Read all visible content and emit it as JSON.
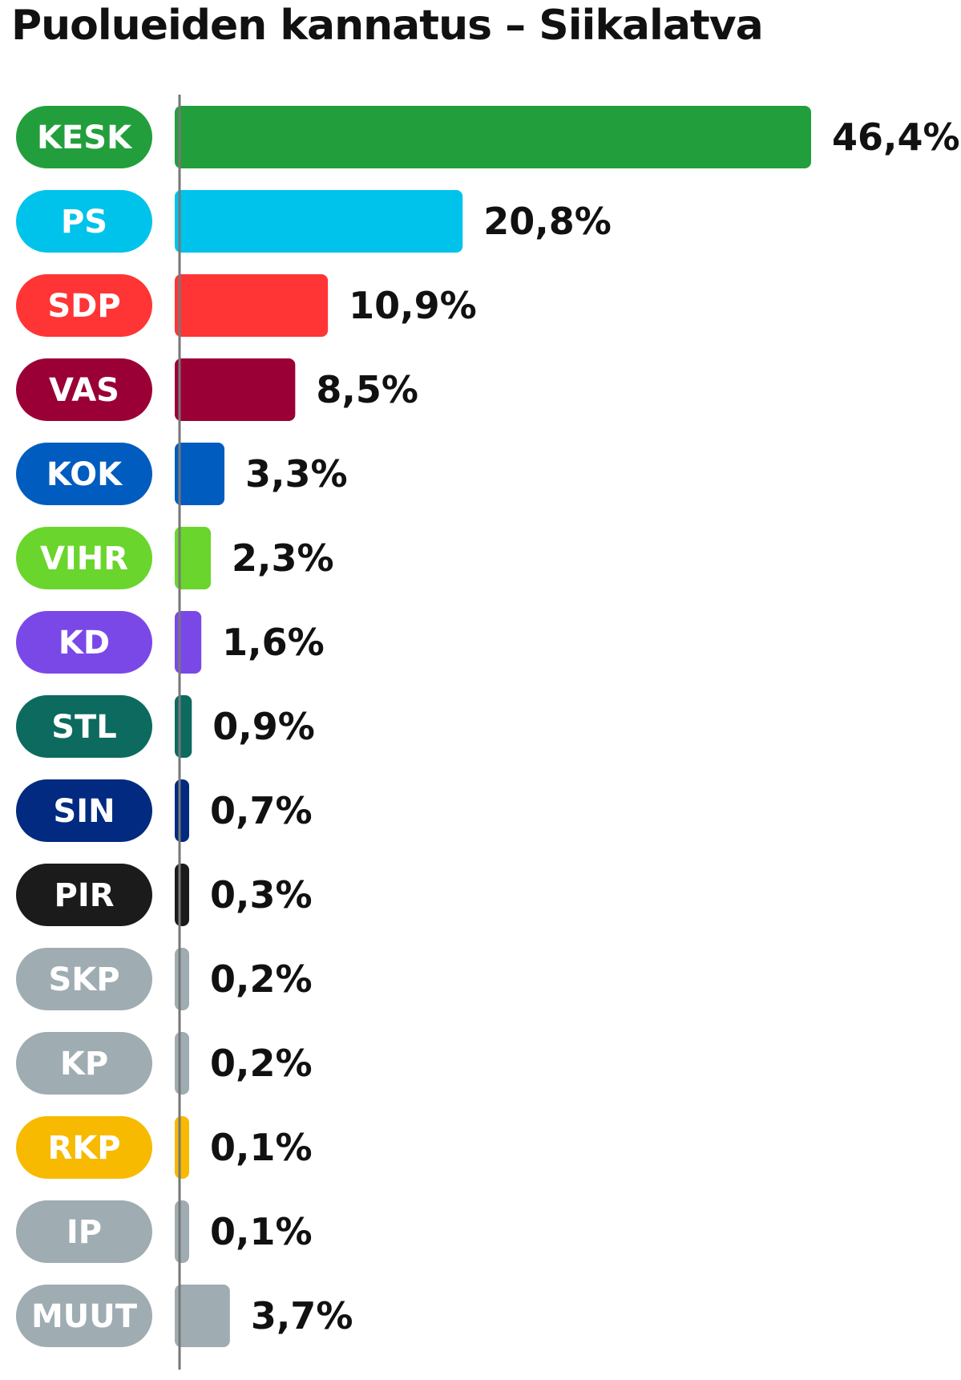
{
  "chart_data": {
    "type": "bar",
    "orientation": "horizontal",
    "title": "Puolueiden kannatus – Siikalatva",
    "categories": [
      "KESK",
      "PS",
      "SDP",
      "VAS",
      "KOK",
      "VIHR",
      "KD",
      "STL",
      "SIN",
      "PIR",
      "SKP",
      "KP",
      "RKP",
      "IP",
      "MUUT"
    ],
    "values": [
      46.4,
      20.8,
      10.9,
      8.5,
      3.3,
      2.3,
      1.6,
      0.9,
      0.7,
      0.3,
      0.2,
      0.2,
      0.1,
      0.1,
      3.7
    ],
    "value_labels": [
      "46,4%",
      "20,8%",
      "10,9%",
      "8,5%",
      "3,3%",
      "2,3%",
      "1,6%",
      "0,9%",
      "0,7%",
      "0,3%",
      "0,2%",
      "0,2%",
      "0,1%",
      "0,1%",
      "3,7%"
    ],
    "colors": [
      "#229f3c",
      "#00c3eb",
      "#ff3535",
      "#9a0036",
      "#005cbf",
      "#6ad52c",
      "#7b48e8",
      "#0d6a5f",
      "#022a80",
      "#1b1b1b",
      "#9facb2",
      "#9facb2",
      "#f7ba00",
      "#9facb2",
      "#9facb2"
    ],
    "xlim": [
      0,
      46.4
    ],
    "grid": false,
    "legend": "none"
  }
}
